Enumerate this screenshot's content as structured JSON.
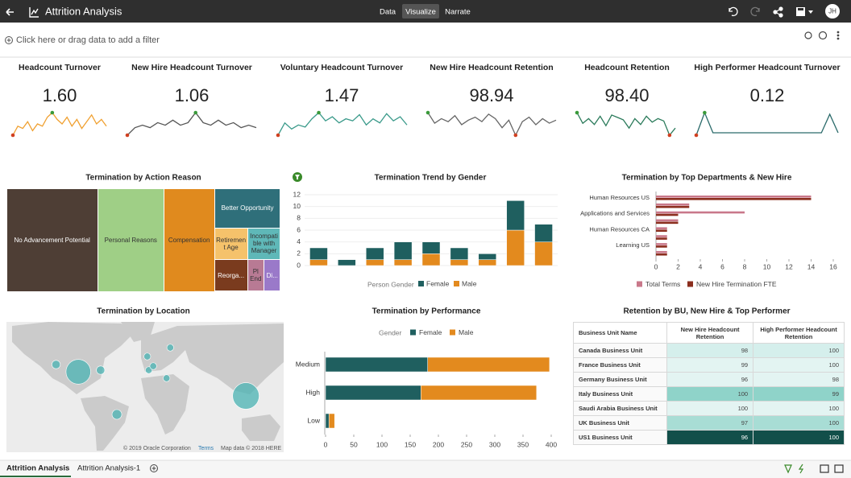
{
  "header": {
    "title": "Attrition Analysis",
    "modes": [
      "Data",
      "Visualize",
      "Narrate"
    ],
    "active_mode": 1,
    "avatar": "JH"
  },
  "filter_bar": {
    "placeholder": "Click here or drag data to add a filter"
  },
  "kpis": [
    {
      "title": "Headcount Turnover",
      "value": "1.60",
      "color": "#f0a030",
      "sparkline": [
        1.1,
        1.5,
        1.4,
        1.7,
        1.3,
        1.6,
        1.5,
        1.9,
        2.1,
        1.8,
        1.6,
        1.9,
        1.5,
        1.8,
        1.4,
        1.7,
        2.0,
        1.6,
        1.8,
        1.5
      ]
    },
    {
      "title": "New Hire Headcount Turnover",
      "value": "1.06",
      "color": "#555555",
      "sparkline": [
        0.6,
        0.9,
        1.0,
        0.9,
        1.1,
        1.0,
        1.2,
        1.0,
        1.1,
        1.5,
        1.1,
        1.0,
        1.2,
        1.0,
        1.1,
        0.9,
        1.0,
        0.9
      ]
    },
    {
      "title": "Voluntary Headcount Turnover",
      "value": "1.47",
      "color": "#3a9a8a",
      "sparkline": [
        0.8,
        1.4,
        1.1,
        1.3,
        1.2,
        1.6,
        1.9,
        1.5,
        1.7,
        1.4,
        1.6,
        1.5,
        1.8,
        1.3,
        1.6,
        1.4,
        1.85,
        1.5,
        1.7,
        1.3
      ]
    },
    {
      "title": "New Hire Headcount Retention",
      "value": "98.94",
      "color": "#666666",
      "sparkline": [
        99.8,
        99.1,
        99.4,
        99.2,
        99.6,
        99.0,
        99.3,
        99.5,
        99.2,
        99.7,
        99.4,
        98.8,
        99.3,
        98.3,
        99.2,
        99.5,
        99.0,
        99.4,
        99.1,
        99.3
      ]
    },
    {
      "title": "Headcount Retention",
      "value": "98.40",
      "color": "#2a7a5a",
      "sparkline": [
        99.5,
        98.6,
        99.0,
        98.5,
        99.2,
        98.4,
        99.3,
        99.1,
        98.9,
        98.2,
        99.0,
        98.5,
        99.2,
        98.7,
        99.0,
        98.8,
        97.6,
        98.2
      ]
    },
    {
      "title": "High Performer Headcount Turnover",
      "value": "0.12",
      "color": "#2a6a6a",
      "sparkline": [
        0.02,
        0.3,
        0.05,
        0.05,
        0.05,
        0.05,
        0.05,
        0.05,
        0.05,
        0.05,
        0.05,
        0.05,
        0.05,
        0.05,
        0.05,
        0.05,
        0.28,
        0.05
      ]
    }
  ],
  "charts": {
    "action_reason": {
      "type": "treemap",
      "title": "Termination by Action Reason",
      "categories": [
        "No Advancement Potential",
        "Personal Reasons",
        "Compensation",
        "Better Opportunity",
        "Retirement Age",
        "Incompatible with Manager",
        "Reorga...",
        "Pl End",
        "Di..."
      ],
      "values": [
        18,
        13,
        10,
        5,
        2,
        2,
        2,
        1,
        1
      ],
      "colors": [
        "#4e3e35",
        "#9fcf86",
        "#e08a1e",
        "#2f6f7a",
        "#f5c26b",
        "#5fb8b8",
        "#7a3b1e",
        "#b87a94",
        "#9a79c9"
      ]
    },
    "gender": {
      "type": "bar",
      "stacked": true,
      "reverse_stack": true,
      "title": "Termination Trend by Gender",
      "legend_title": "Person Gender",
      "categories": [
        null,
        null,
        null,
        null,
        null,
        null,
        null,
        null,
        null
      ],
      "series": [
        {
          "name": "Female",
          "color": "#1f5f5f",
          "values": [
            2,
            1,
            2,
            3,
            2,
            2,
            1,
            5,
            3
          ]
        },
        {
          "name": "Male",
          "color": "#e38a1e",
          "values": [
            1,
            0,
            1,
            1,
            2,
            1,
            1,
            6,
            4
          ]
        }
      ],
      "ylim": [
        0,
        12
      ],
      "yticks": [
        0,
        2,
        4,
        6,
        8,
        10,
        12
      ],
      "grid": true
    },
    "departments": {
      "type": "bar",
      "orientation": "horizontal",
      "title": "Termination by Top Departments & New Hire",
      "categories": [
        "Human Resources US",
        null,
        "Applications and Services",
        null,
        "Human Resources CA",
        null,
        "Learning US",
        null
      ],
      "series": [
        {
          "name": "Total Terms",
          "color": "#c9788a",
          "values": [
            14,
            3,
            8,
            2,
            1,
            1,
            1,
            1
          ]
        },
        {
          "name": "New Hire Termination FTE",
          "color": "#8b2e1e",
          "values": [
            14,
            3,
            2,
            2,
            1,
            1,
            1,
            1
          ]
        }
      ],
      "xlim": [
        0,
        16
      ],
      "xticks": [
        0,
        2,
        4,
        6,
        8,
        10,
        12,
        14,
        16
      ]
    },
    "location": {
      "type": "map",
      "title": "Termination by Location",
      "color": "#4ab3b3",
      "points": [
        {
          "lon": -120,
          "lat": 47,
          "size": 3
        },
        {
          "lon": -90,
          "lat": 38,
          "size": 26
        },
        {
          "lon": -60,
          "lat": 40,
          "size": 3
        },
        {
          "lon": -38,
          "lat": -15,
          "size": 4
        },
        {
          "lon": 3,
          "lat": 57,
          "size": 2
        },
        {
          "lon": 5,
          "lat": 40,
          "size": 2
        },
        {
          "lon": 11,
          "lat": 45,
          "size": 2
        },
        {
          "lon": 34,
          "lat": 68,
          "size": 2
        },
        {
          "lon": 29,
          "lat": 30,
          "size": 2
        },
        {
          "lon": 136,
          "lat": 8,
          "size": 30
        }
      ],
      "credits": [
        "© 2019 Oracle Corporation",
        "Terms",
        "Map data © 2018 HERE"
      ]
    },
    "performance": {
      "type": "bar",
      "orientation": "horizontal",
      "stacked": true,
      "title": "Termination by Performance",
      "legend_title": "Gender",
      "categories": [
        "Medium",
        "High",
        "Low"
      ],
      "series": [
        {
          "name": "Female",
          "color": "#1f5f5f",
          "values": [
            181,
            169,
            6
          ]
        },
        {
          "name": "Male",
          "color": "#e38a1e",
          "values": [
            216,
            205,
            10
          ]
        }
      ],
      "xlim": [
        0,
        400
      ],
      "xticks": [
        0,
        50,
        100,
        150,
        200,
        250,
        300,
        350,
        400
      ]
    }
  },
  "retention_table": {
    "title": "Retention by BU, New Hire & Top Performer",
    "columns": [
      "Business Unit Name",
      "New Hire Headcount Retention",
      "High Performer Headcount Retention"
    ],
    "rows": [
      [
        "Canada Business Unit",
        98,
        100
      ],
      [
        "France Business Unit",
        99,
        100
      ],
      [
        "Germany Business Unit",
        96,
        98
      ],
      [
        "Italy Business Unit",
        100,
        99
      ],
      [
        "Saudi Arabia Business Unit",
        100,
        100
      ],
      [
        "UK Business Unit",
        97,
        100
      ],
      [
        "US1 Business Unit",
        96,
        100
      ]
    ],
    "cell_colors": [
      [
        "#d5efec",
        "#d5efec"
      ],
      [
        "#e3f4f2",
        "#e3f4f2"
      ],
      [
        "#e3f4f2",
        "#e3f4f2"
      ],
      [
        "#8fd3c9",
        "#8fd3c9"
      ],
      [
        "#e3f4f2",
        "#e3f4f2"
      ],
      [
        "#a8ddd5",
        "#a8ddd5"
      ],
      [
        "#124f4a",
        "#124f4a"
      ]
    ]
  },
  "tabs": [
    "Attrition Analysis",
    "Attrition Analysis-1"
  ],
  "active_tab": 0
}
